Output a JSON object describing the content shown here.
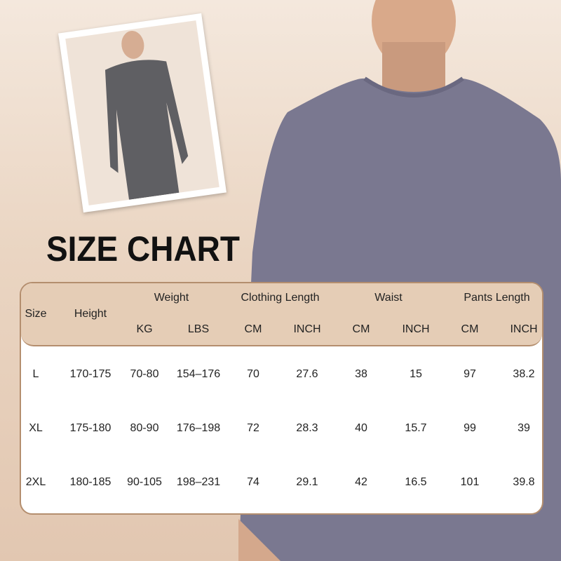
{
  "title": "SIZE CHART",
  "colors": {
    "header_fill": "#e5cdb6",
    "border": "#b48e6e",
    "shirt": "#7a7890",
    "inset_shirt": "#5f5f63"
  },
  "table": {
    "group_headers": [
      "Size",
      "Height",
      "Weight",
      "Clothing Length",
      "Waist",
      "Pants Length"
    ],
    "unit_headers": [
      "KG",
      "LBS",
      "CM",
      "INCH",
      "CM",
      "INCH",
      "CM",
      "INCH"
    ],
    "rows": [
      [
        "L",
        "170-175",
        "70-80",
        "154–176",
        "70",
        "27.6",
        "38",
        "15",
        "97",
        "38.2"
      ],
      [
        "XL",
        "175-180",
        "80-90",
        "176–198",
        "72",
        "28.3",
        "40",
        "15.7",
        "99",
        "39"
      ],
      [
        "2XL",
        "180-185",
        "90-105",
        "198–231",
        "74",
        "29.1",
        "42",
        "16.5",
        "101",
        "39.8"
      ]
    ]
  }
}
